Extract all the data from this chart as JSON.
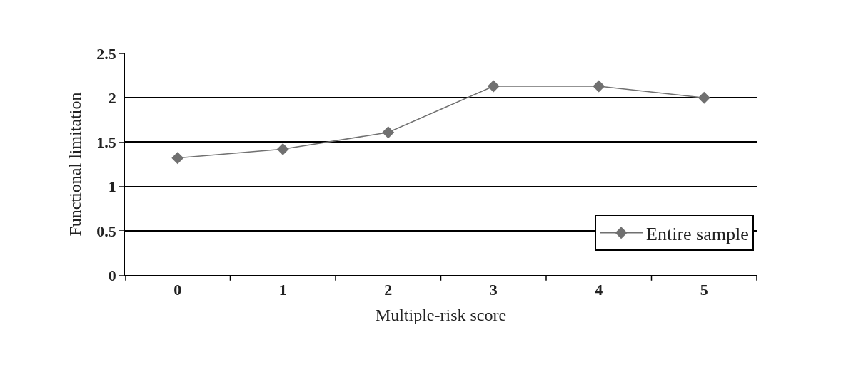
{
  "chart_data": {
    "type": "line",
    "xlabel": "Multiple-risk score",
    "ylabel": "Functional limitation",
    "categories": [
      "0",
      "1",
      "2",
      "3",
      "4",
      "5"
    ],
    "series": [
      {
        "name": "Entire sample",
        "color": "#707070",
        "values": [
          1.32,
          1.42,
          1.61,
          2.13,
          2.13,
          2.0
        ]
      }
    ],
    "ylim": [
      0,
      2.5
    ],
    "yticks": [
      0,
      0.5,
      1,
      1.5,
      2,
      2.5
    ],
    "grid": "y",
    "legend": "bottom right",
    "marker": "diamond",
    "line_style": "solid"
  }
}
